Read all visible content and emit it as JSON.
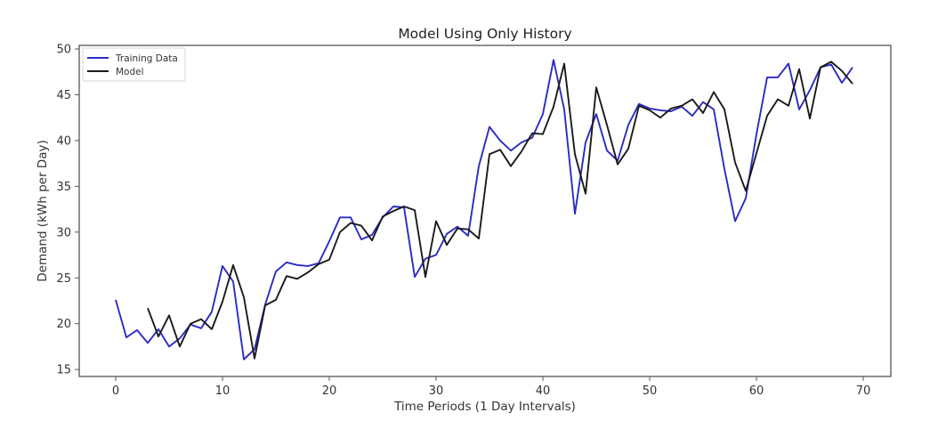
{
  "chart_data": {
    "type": "line",
    "title": "Model Using Only History",
    "xlabel": "Time Periods (1 Day Intervals)",
    "ylabel": "Demand (kWh per Day)",
    "xlim": [
      -3.5,
      72.5
    ],
    "ylim": [
      14.3,
      50.5
    ],
    "xticks": [
      0,
      10,
      20,
      30,
      40,
      50,
      60,
      70
    ],
    "yticks": [
      15,
      20,
      25,
      30,
      35,
      40,
      45,
      50
    ],
    "grid": false,
    "legend_position": "upper left",
    "series": [
      {
        "name": "Training Data",
        "color": "#2b2bc4",
        "x_start": 0,
        "values": [
          22.6,
          18.5,
          19.3,
          17.9,
          19.4,
          17.5,
          18.4,
          19.9,
          19.5,
          21.3,
          26.3,
          24.6,
          16.1,
          17.2,
          22.1,
          25.7,
          26.7,
          26.4,
          26.3,
          26.6,
          29.0,
          31.6,
          31.6,
          29.2,
          29.7,
          31.6,
          32.8,
          32.7,
          25.1,
          27.1,
          27.5,
          29.8,
          30.6,
          29.6,
          37.2,
          41.5,
          40.0,
          38.9,
          39.8,
          40.3,
          42.9,
          48.8,
          43.4,
          32.0,
          39.8,
          42.9,
          38.9,
          37.8,
          41.7,
          44.0,
          43.5,
          43.3,
          43.2,
          43.7,
          42.7,
          44.2,
          43.4,
          36.9,
          31.2,
          33.7,
          40.7,
          46.9,
          46.9,
          48.4,
          43.4,
          45.5,
          48.0,
          48.3,
          46.3,
          48.0
        ]
      },
      {
        "name": "Model",
        "color": "#1a1a1a",
        "x_start": 3,
        "values": [
          21.7,
          18.6,
          20.9,
          17.5,
          20.0,
          20.5,
          19.4,
          22.4,
          26.4,
          22.9,
          16.2,
          22.0,
          22.6,
          25.2,
          24.9,
          25.6,
          26.5,
          27.0,
          30.0,
          31.0,
          30.7,
          29.1,
          31.7,
          32.3,
          32.8,
          32.4,
          25.1,
          31.2,
          28.6,
          30.4,
          30.3,
          29.3,
          38.5,
          39.0,
          37.2,
          38.8,
          40.8,
          40.7,
          43.7,
          48.4,
          38.5,
          34.2,
          45.8,
          41.7,
          37.4,
          39.1,
          43.8,
          43.3,
          42.5,
          43.5,
          43.8,
          44.5,
          43.0,
          45.3,
          43.4,
          37.6,
          34.5,
          38.6,
          42.7,
          44.5,
          43.8,
          47.8,
          42.4,
          48.0,
          48.6,
          47.6,
          46.2
        ]
      }
    ]
  }
}
